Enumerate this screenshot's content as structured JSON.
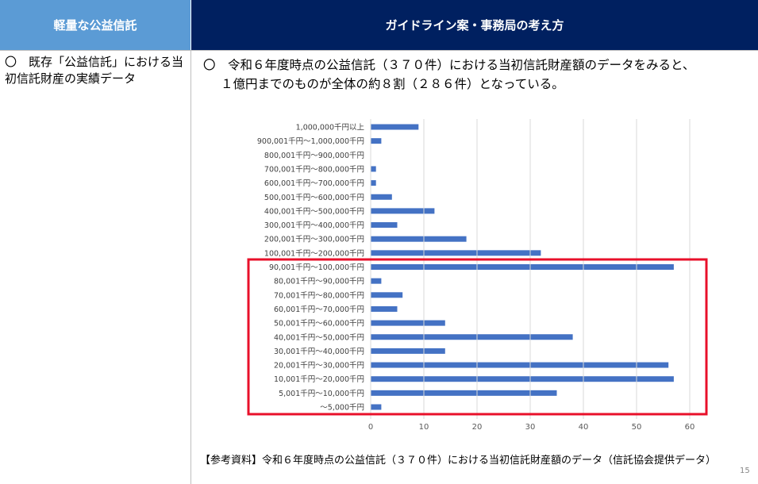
{
  "header": {
    "left": "軽量な公益信託",
    "right": "ガイドライン案・事務局の考え方"
  },
  "left_cell": "〇　既存「公益信託」における当初信託財産の実績データ",
  "right_text": {
    "lines": [
      "〇　令和６年度時点の公益信託（３７０件）における当初信託財産額のデータをみると、",
      "１億円までのものが全体の約８割（２８６件）となっている。"
    ]
  },
  "chart_data": {
    "type": "hbar",
    "color": "#4472c4",
    "categories": [
      "1,000,000千円以上",
      "900,001千円～1,000,000千円",
      "800,001千円～900,000千円",
      "700,001千円～800,000千円",
      "600,001千円～700,000千円",
      "500,001千円～600,000千円",
      "400,001千円～500,000千円",
      "300,001千円～400,000千円",
      "200,001千円～300,000千円",
      "100,001千円～200,000千円",
      "90,001千円～100,000千円",
      "80,001千円～90,000千円",
      "70,001千円～80,000千円",
      "60,001千円～70,000千円",
      "50,001千円～60,000千円",
      "40,001千円～50,000千円",
      "30,001千円～40,000千円",
      "20,001千円～30,000千円",
      "10,001千円～20,000千円",
      "5,001千円～10,000千円",
      "～5,000千円"
    ],
    "values": [
      9,
      2,
      0,
      1,
      1,
      4,
      12,
      5,
      18,
      32,
      57,
      2,
      6,
      5,
      14,
      38,
      14,
      56,
      57,
      35,
      2
    ],
    "xlim": [
      0,
      60
    ],
    "xticks": [
      0,
      10,
      20,
      30,
      40,
      50,
      60
    ],
    "grid": true
  },
  "footer": "【参考資料】令和６年度時点の公益信託（３７０件）における当初信託財産額のデータ（信託協会提供データ）",
  "page_number": "15"
}
